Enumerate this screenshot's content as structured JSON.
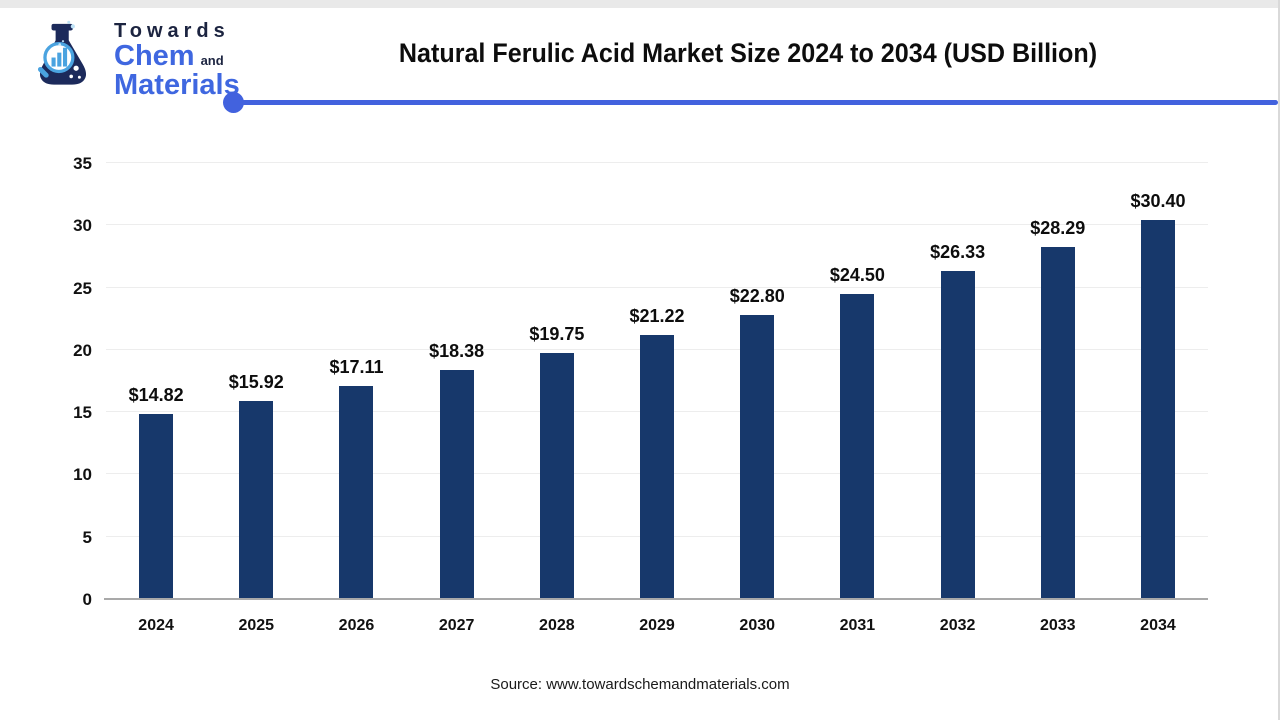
{
  "logo": {
    "line1": "Towards",
    "line2": "Chem",
    "line2_suffix": "and",
    "line3": "Materials",
    "brand_blue": "#3f67e0",
    "brand_navy": "#1c2440",
    "brand_lightblue": "#4aa3e0"
  },
  "header": {
    "title": "Natural Ferulic Acid Market Size 2024 to 2034 (USD Billion)",
    "accent_color": "#4262de"
  },
  "chart_data": {
    "type": "bar",
    "title": "Natural Ferulic Acid Market Size 2024 to 2034 (USD Billion)",
    "categories": [
      "2024",
      "2025",
      "2026",
      "2027",
      "2028",
      "2029",
      "2030",
      "2031",
      "2032",
      "2033",
      "2034"
    ],
    "values": [
      14.82,
      15.92,
      17.11,
      18.38,
      19.75,
      21.22,
      22.8,
      24.5,
      26.33,
      28.29,
      30.4
    ],
    "labels": [
      "$14.82",
      "$15.92",
      "$17.11",
      "$18.38",
      "$19.75",
      "$21.22",
      "$22.80",
      "$24.50",
      "$26.33",
      "$28.29",
      "$30.40"
    ],
    "xlabel": "",
    "ylabel": "",
    "ylim": [
      0,
      35
    ],
    "yticks": [
      0,
      5,
      10,
      15,
      20,
      25,
      30,
      35
    ],
    "bar_color": "#17386b",
    "grid": true,
    "legend": false,
    "unit": "USD Billion"
  },
  "footer": {
    "source": "Source: www.towardschemandmaterials.com"
  }
}
